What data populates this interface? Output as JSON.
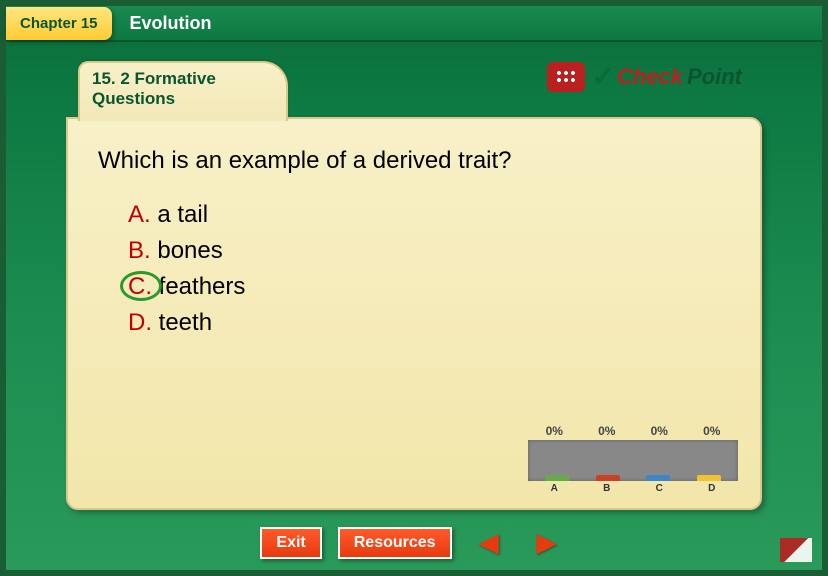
{
  "header": {
    "chapter_tab": "Chapter 15",
    "title": "Evolution"
  },
  "folder": {
    "tab_title_line1": "15. 2 Formative",
    "tab_title_line2": "Questions"
  },
  "checkpoint": {
    "check_part": "Check",
    "point_part": "Point"
  },
  "question": {
    "text": "Which is an example of a derived trait?",
    "correct_index": 2,
    "options": [
      {
        "letter": "A.",
        "text": " a tail"
      },
      {
        "letter": "B.",
        "text": " bones"
      },
      {
        "letter": "C.",
        "text": " feathers"
      },
      {
        "letter": "D.",
        "text": " teeth"
      }
    ]
  },
  "response_chart": {
    "labels": [
      "A",
      "B",
      "C",
      "D"
    ],
    "values": [
      "0%",
      "0%",
      "0%",
      "0%"
    ],
    "bar_colors": [
      "#6aa84f",
      "#cc4125",
      "#3d85c6",
      "#f1c232"
    ]
  },
  "footer": {
    "exit": "Exit",
    "resources": "Resources"
  },
  "colors": {
    "accent_red": "#c00000",
    "accent_green": "#2a9a2a",
    "frame_green": "#0d7842"
  }
}
